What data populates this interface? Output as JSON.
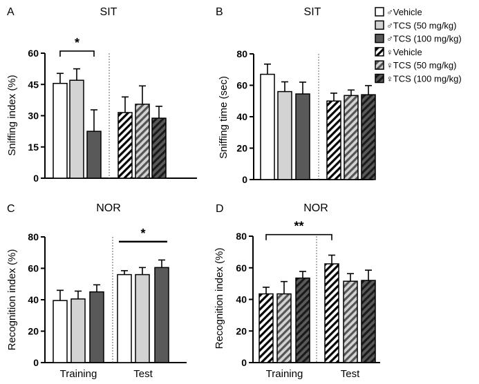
{
  "legend": {
    "items": [
      {
        "label": "♂Vehicle",
        "fill": "#ffffff",
        "hatch": false
      },
      {
        "label": "♂TCS (50 mg/kg)",
        "fill": "#d3d3d3",
        "hatch": false
      },
      {
        "label": "♂TCS (100 mg/kg)",
        "fill": "#595959",
        "hatch": false
      },
      {
        "label": "♀Vehicle",
        "fill": "#ffffff",
        "hatch": true
      },
      {
        "label": "♀TCS (50 mg/kg)",
        "fill": "#d3d3d3",
        "hatch": true
      },
      {
        "label": "♀TCS (100 mg/kg)",
        "fill": "#595959",
        "hatch": true
      }
    ]
  },
  "chart_data": [
    {
      "panel": "A",
      "type": "bar",
      "title": "SIT",
      "ylabel": "Sniffing index (%)",
      "ylim": [
        0,
        60
      ],
      "yticks": [
        0,
        15,
        30,
        45,
        60
      ],
      "xlabels": [],
      "groups": [
        {
          "name": "",
          "series": [
            0,
            1,
            2
          ],
          "values": [
            45.5,
            47,
            22.5
          ],
          "errors": [
            4.8,
            5.5,
            10.3
          ]
        },
        {
          "name": "",
          "series": [
            3,
            4,
            5
          ],
          "values": [
            31.5,
            35.5,
            28.8
          ],
          "errors": [
            7.5,
            8.8,
            5.7
          ]
        }
      ],
      "significance": [
        {
          "label": "*",
          "from": [
            0,
            0
          ],
          "to": [
            0,
            2
          ],
          "level": 61
        }
      ]
    },
    {
      "panel": "B",
      "type": "bar",
      "title": "SIT",
      "ylabel": "Sniffing time (sec)",
      "ylim": [
        0,
        80
      ],
      "yticks": [
        0,
        20,
        40,
        60,
        80
      ],
      "xlabels": [],
      "groups": [
        {
          "name": "",
          "series": [
            0,
            1,
            2
          ],
          "values": [
            67,
            56,
            54.5
          ],
          "errors": [
            6.5,
            6.2,
            7.5
          ]
        },
        {
          "name": "",
          "series": [
            3,
            4,
            5
          ],
          "values": [
            50,
            53.5,
            54
          ],
          "errors": [
            5,
            3.5,
            5.8
          ]
        }
      ],
      "significance": []
    },
    {
      "panel": "C",
      "type": "bar",
      "title": "NOR",
      "ylabel": "Recognition index (%)",
      "ylim": [
        0,
        80
      ],
      "yticks": [
        0,
        20,
        40,
        60,
        80
      ],
      "xlabels": [
        "Training",
        "Test"
      ],
      "groups": [
        {
          "name": "Training",
          "series": [
            0,
            1,
            2
          ],
          "values": [
            39.5,
            40.5,
            45
          ],
          "errors": [
            6.5,
            5,
            4.5
          ]
        },
        {
          "name": "Test",
          "series": [
            0,
            1,
            2
          ],
          "values": [
            56,
            56,
            60.5
          ],
          "errors": [
            2.5,
            4.5,
            4.8
          ]
        }
      ],
      "significance": [
        {
          "label": "*",
          "from": [
            1,
            0
          ],
          "to": [
            1,
            2
          ],
          "level": 77
        }
      ]
    },
    {
      "panel": "D",
      "type": "bar",
      "title": "NOR",
      "ylabel": "Recognition index (%)",
      "ylim": [
        0,
        80
      ],
      "yticks": [
        0,
        20,
        40,
        60,
        80
      ],
      "xlabels": [
        "Training",
        "Test"
      ],
      "groups": [
        {
          "name": "Training",
          "series": [
            3,
            4,
            5
          ],
          "values": [
            43.5,
            43.5,
            53.5
          ],
          "errors": [
            4.2,
            7.8,
            4.2
          ]
        },
        {
          "name": "Test",
          "series": [
            3,
            4,
            5
          ],
          "values": [
            62.5,
            51.5,
            52
          ],
          "errors": [
            5.5,
            4.8,
            6.5
          ]
        }
      ],
      "significance": [
        {
          "label": "**",
          "from": [
            0,
            0
          ],
          "to": [
            1,
            0
          ],
          "level": 81
        }
      ]
    }
  ]
}
